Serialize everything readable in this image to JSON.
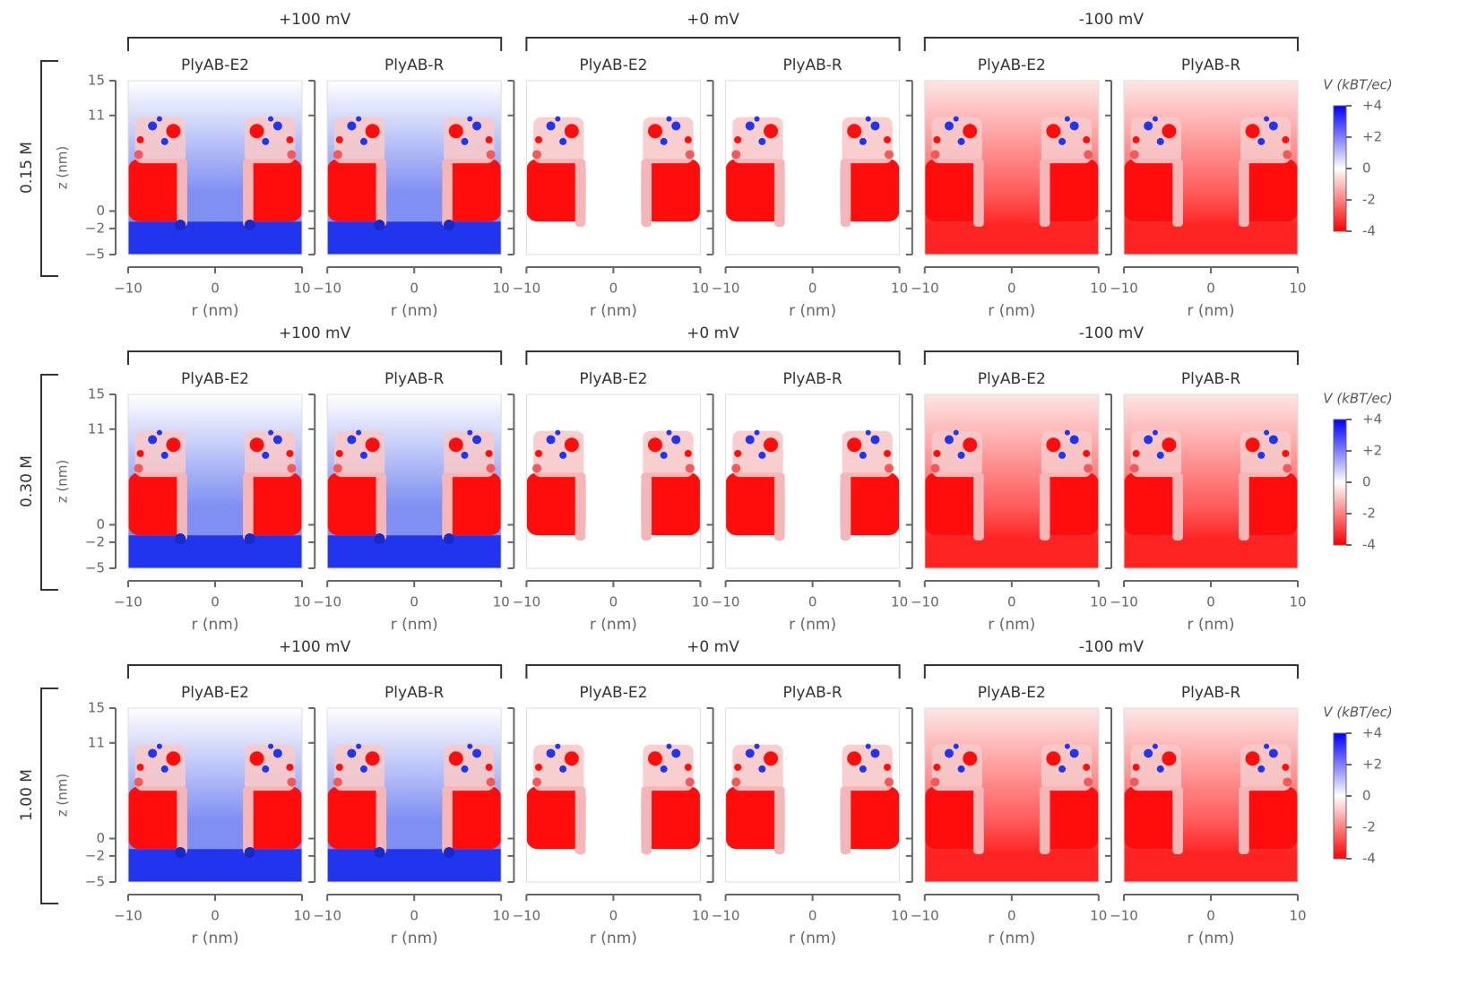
{
  "chart_data": {
    "type": "heatmap-grid",
    "rows": [
      "0.15 M",
      "0.30 M",
      "1.00 M"
    ],
    "voltages": [
      "+100 mV",
      "+0 mV",
      "-100 mV"
    ],
    "pores": [
      "PlyAB-E2",
      "PlyAB-R"
    ],
    "xlabel": "r (nm)",
    "ylabel": "z (nm)",
    "xlim": [
      -10,
      10
    ],
    "xticks": [
      {
        "value": -10,
        "label": "−10"
      },
      0,
      10
    ],
    "ylim": [
      -5,
      15
    ],
    "yticks": [
      {
        "value": -5,
        "label": "−5"
      },
      {
        "value": -2,
        "label": "−2"
      },
      0,
      11,
      15
    ],
    "colorbar": {
      "label": "V (kBT/ec)",
      "lim": [
        -4,
        4
      ],
      "colors": [
        "#0000ff",
        "#ffffff",
        "#ff0000"
      ],
      "ticks": [
        {
          "value": 4,
          "label": "+4"
        },
        {
          "value": 2,
          "label": "+2"
        },
        0,
        -2,
        -4
      ]
    }
  }
}
